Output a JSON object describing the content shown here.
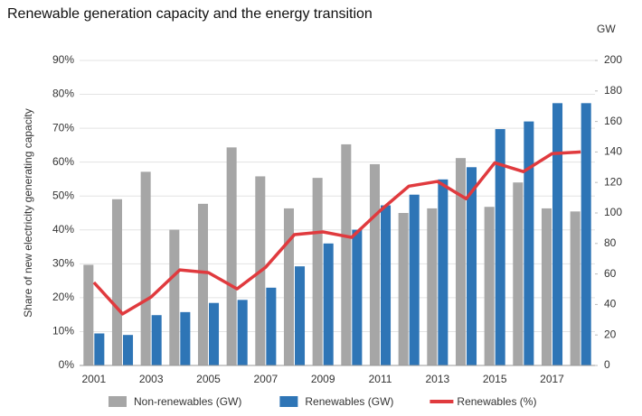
{
  "chart_data": {
    "type": "bar-line",
    "title": "Renewable generation capacity and the energy transition",
    "y_label": "Share of new electricity generating capacity",
    "y2_label": "GW",
    "categories": [
      "2001",
      null,
      "2003",
      null,
      "2005",
      null,
      "2007",
      null,
      "2009",
      null,
      "2011",
      null,
      "2013",
      null,
      "2015",
      null,
      "2017",
      null
    ],
    "series": [
      {
        "name": "Non-renewables (GW)",
        "color": "#a6a6a6",
        "axis": "y2",
        "kind": "bar",
        "values": [
          66,
          109,
          127,
          89,
          106,
          143,
          124,
          103,
          123,
          145,
          132,
          100,
          103,
          136,
          104,
          120,
          103,
          101
        ]
      },
      {
        "name": "Renewables (GW)",
        "color": "#2e75b6",
        "axis": "y2",
        "kind": "bar",
        "values": [
          21,
          20,
          33,
          35,
          41,
          43,
          51,
          65,
          80,
          89,
          105,
          112,
          122,
          130,
          155,
          160,
          172,
          172
        ]
      },
      {
        "name": "Renewables (%)",
        "color": "#e03a3e",
        "axis": "y",
        "kind": "line",
        "values": [
          24.5,
          15.2,
          20.2,
          28.2,
          27.4,
          22.6,
          29,
          38.6,
          39.4,
          37.8,
          45.7,
          52.9,
          54.3,
          49.2,
          59.8,
          57.2,
          62.5,
          63
        ]
      }
    ],
    "ylim": [
      0,
      90
    ],
    "yticks": [
      {
        "value": 0,
        "label": "0%"
      },
      {
        "value": 10,
        "label": "10%"
      },
      {
        "value": 20,
        "label": "20%"
      },
      {
        "value": 30,
        "label": "30%"
      },
      {
        "value": 40,
        "label": "40%"
      },
      {
        "value": 50,
        "label": "50%"
      },
      {
        "value": 60,
        "label": "60%"
      },
      {
        "value": 70,
        "label": "70%"
      },
      {
        "value": 80,
        "label": "80%"
      },
      {
        "value": 90,
        "label": "90%"
      }
    ],
    "y2lim": [
      0,
      200
    ],
    "y2ticks": [
      0,
      20,
      40,
      60,
      80,
      100,
      120,
      140,
      160,
      180,
      200
    ],
    "grid": true,
    "legend": "bottom"
  }
}
